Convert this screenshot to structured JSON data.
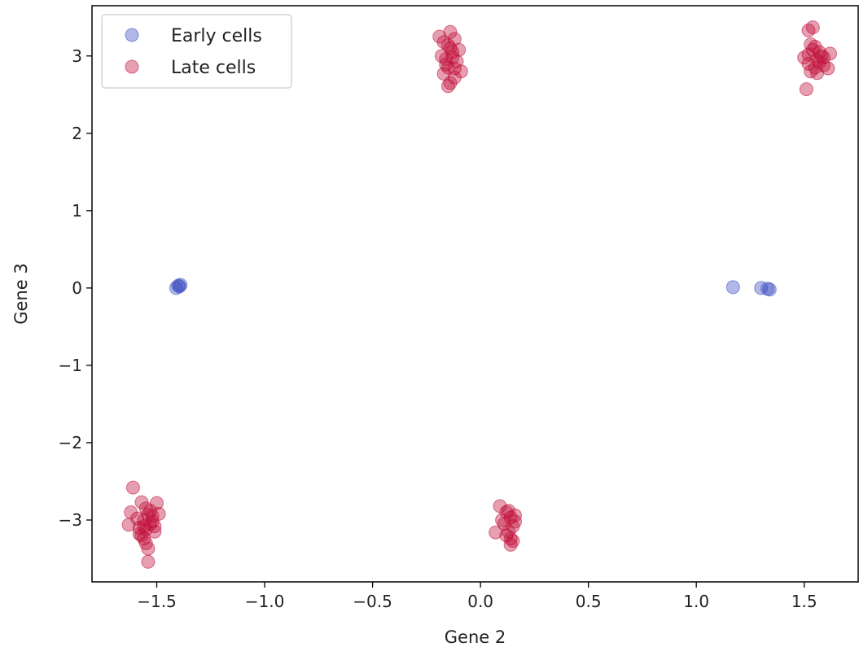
{
  "chart_data": {
    "type": "scatter",
    "title": "",
    "xlabel": "Gene 2",
    "ylabel": "Gene 3",
    "xlim": [
      -1.8,
      1.75
    ],
    "ylim": [
      -3.8,
      3.65
    ],
    "xticks": [
      -1.5,
      -1.0,
      -0.5,
      0.0,
      0.5,
      1.0,
      1.5
    ],
    "xtick_labels": [
      "−1.5",
      "−1.0",
      "−0.5",
      "0.0",
      "0.5",
      "1.0",
      "1.5"
    ],
    "yticks": [
      -3,
      -2,
      -1,
      0,
      1,
      2,
      3
    ],
    "ytick_labels": [
      "−3",
      "−2",
      "−1",
      "0",
      "1",
      "2",
      "3"
    ],
    "grid": false,
    "legend_position": "upper-left",
    "series": [
      {
        "name": "Early cells",
        "color": "#3b4cc0",
        "alpha": 0.4,
        "points": [
          [
            -1.41,
            0.0
          ],
          [
            -1.4,
            0.03
          ],
          [
            -1.39,
            0.04
          ],
          [
            -1.395,
            0.02
          ],
          [
            1.17,
            0.01
          ],
          [
            1.3,
            0.0
          ],
          [
            1.33,
            -0.01
          ],
          [
            1.34,
            -0.02
          ]
        ]
      },
      {
        "name": "Late cells",
        "color": "#c0103a",
        "alpha": 0.4,
        "points": [
          [
            -0.19,
            3.25
          ],
          [
            -0.14,
            3.31
          ],
          [
            -0.17,
            3.18
          ],
          [
            -0.12,
            3.22
          ],
          [
            -0.1,
            3.08
          ],
          [
            -0.09,
            2.8
          ],
          [
            -0.11,
            2.93
          ],
          [
            -0.16,
            2.96
          ],
          [
            -0.18,
            3.0
          ],
          [
            -0.13,
            3.05
          ],
          [
            -0.15,
            2.85
          ],
          [
            -0.14,
            2.65
          ],
          [
            -0.15,
            2.61
          ],
          [
            -0.17,
            2.77
          ],
          [
            -0.12,
            2.72
          ],
          [
            -0.14,
            3.1
          ],
          [
            -0.16,
            2.89
          ],
          [
            -0.13,
            2.98
          ],
          [
            -0.15,
            3.14
          ],
          [
            -0.12,
            2.84
          ],
          [
            1.52,
            3.33
          ],
          [
            1.54,
            3.37
          ],
          [
            1.51,
            2.57
          ],
          [
            1.5,
            2.98
          ],
          [
            1.55,
            3.12
          ],
          [
            1.57,
            3.05
          ],
          [
            1.59,
            2.88
          ],
          [
            1.61,
            2.84
          ],
          [
            1.62,
            3.03
          ],
          [
            1.53,
            2.8
          ],
          [
            1.56,
            2.95
          ],
          [
            1.52,
            2.9
          ],
          [
            1.58,
            3.0
          ],
          [
            1.55,
            2.85
          ],
          [
            1.54,
            3.08
          ],
          [
            1.53,
            3.15
          ],
          [
            1.57,
            2.92
          ],
          [
            1.56,
            2.78
          ],
          [
            1.52,
            3.02
          ],
          [
            1.59,
            2.98
          ],
          [
            -1.61,
            -2.58
          ],
          [
            -1.62,
            -2.9
          ],
          [
            -1.63,
            -3.06
          ],
          [
            -1.57,
            -2.77
          ],
          [
            -1.55,
            -2.85
          ],
          [
            -1.5,
            -2.78
          ],
          [
            -1.49,
            -2.92
          ],
          [
            -1.51,
            -3.15
          ],
          [
            -1.55,
            -3.3
          ],
          [
            -1.54,
            -3.37
          ],
          [
            -1.54,
            -3.54
          ],
          [
            -1.58,
            -3.1
          ],
          [
            -1.56,
            -3.0
          ],
          [
            -1.53,
            -3.05
          ],
          [
            -1.52,
            -2.95
          ],
          [
            -1.57,
            -3.2
          ],
          [
            -1.55,
            -3.12
          ],
          [
            -1.59,
            -2.98
          ],
          [
            -1.53,
            -2.88
          ],
          [
            -1.56,
            -3.08
          ],
          [
            -1.52,
            -3.02
          ],
          [
            -1.58,
            -3.18
          ],
          [
            -1.54,
            -2.93
          ],
          [
            -1.56,
            -3.24
          ],
          [
            -1.51,
            -3.08
          ],
          [
            0.09,
            -2.82
          ],
          [
            0.12,
            -2.9
          ],
          [
            0.14,
            -2.97
          ],
          [
            0.16,
            -2.94
          ],
          [
            0.07,
            -3.16
          ],
          [
            0.1,
            -3.0
          ],
          [
            0.13,
            -3.15
          ],
          [
            0.14,
            -3.24
          ],
          [
            0.14,
            -3.32
          ],
          [
            0.15,
            -3.27
          ],
          [
            0.11,
            -3.05
          ],
          [
            0.15,
            -3.08
          ],
          [
            0.13,
            -2.88
          ],
          [
            0.12,
            -3.2
          ],
          [
            0.16,
            -3.02
          ]
        ]
      }
    ]
  }
}
